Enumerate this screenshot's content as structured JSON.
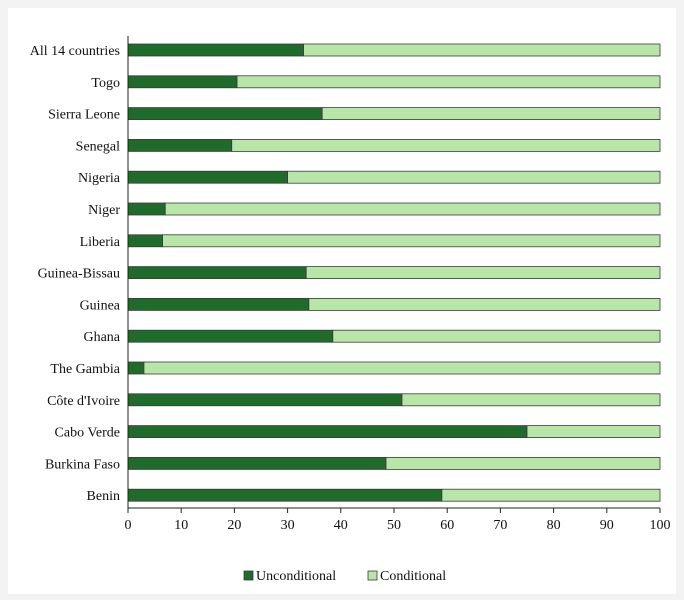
{
  "chart_data": {
    "type": "bar",
    "orientation": "horizontal",
    "stacked": true,
    "categories": [
      "All 14 countries",
      "Togo",
      "Sierra Leone",
      "Senegal",
      "Nigeria",
      "Niger",
      "Liberia",
      "Guinea-Bissau",
      "Guinea",
      "Ghana",
      "The Gambia",
      "Côte d'Ivoire",
      "Cabo Verde",
      "Burkina Faso",
      "Benin"
    ],
    "series": [
      {
        "name": "Unconditional",
        "color": "#1e6b2a",
        "values": [
          33,
          20.5,
          36.5,
          19.5,
          30,
          7,
          6.5,
          33.5,
          34,
          38.5,
          3,
          51.5,
          75,
          48.5,
          59
        ]
      },
      {
        "name": "Conditional",
        "color": "#b8e6a8",
        "values": [
          67,
          79.5,
          63.5,
          80.5,
          70,
          93,
          93.5,
          66.5,
          66,
          61.5,
          97,
          48.5,
          25,
          51.5,
          41
        ]
      }
    ],
    "xlim": [
      0,
      100
    ],
    "xticks": [
      "0",
      "10",
      "20",
      "30",
      "40",
      "50",
      "60",
      "70",
      "80",
      "90",
      "100"
    ],
    "grid": false,
    "legend_position": "bottom"
  }
}
